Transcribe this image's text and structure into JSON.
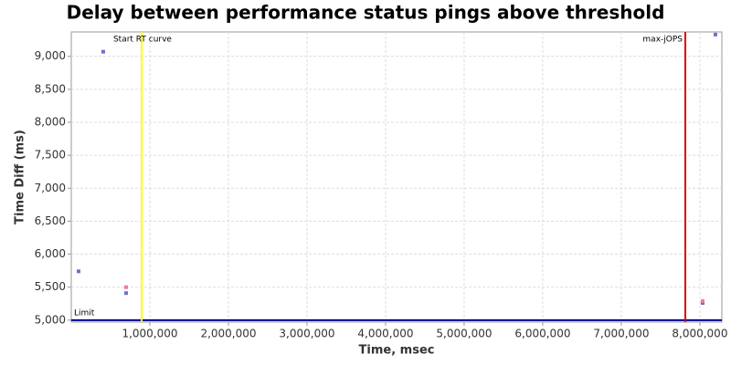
{
  "chart_data": {
    "type": "scatter",
    "title": "Delay between performance status pings above threshold",
    "xlabel": "Time, msec",
    "ylabel": "Time Diff (ms)",
    "xlim": [
      0,
      8280000
    ],
    "ylim": [
      4970,
      9370
    ],
    "xticks": [
      {
        "value": 1000000,
        "label": "1,000,000"
      },
      {
        "value": 2000000,
        "label": "2,000,000"
      },
      {
        "value": 3000000,
        "label": "3,000,000"
      },
      {
        "value": 4000000,
        "label": "4,000,000"
      },
      {
        "value": 5000000,
        "label": "5,000,000"
      },
      {
        "value": 6000000,
        "label": "6,000,000"
      },
      {
        "value": 7000000,
        "label": "7,000,000"
      },
      {
        "value": 8000000,
        "label": "8,000,000"
      }
    ],
    "yticks": [
      {
        "value": 5000,
        "label": "5,000"
      },
      {
        "value": 5500,
        "label": "5,500"
      },
      {
        "value": 6000,
        "label": "6,000"
      },
      {
        "value": 6500,
        "label": "6,500"
      },
      {
        "value": 7000,
        "label": "7,000"
      },
      {
        "value": 7500,
        "label": "7,500"
      },
      {
        "value": 8000,
        "label": "8,000"
      },
      {
        "value": 8500,
        "label": "8,500"
      },
      {
        "value": 9000,
        "label": "9,000"
      }
    ],
    "grid": true,
    "series": [
      {
        "color": "#7070cc",
        "x": [
          93000,
          407000,
          698000,
          8035000,
          8198000
        ],
        "values": [
          5740,
          9070,
          5410,
          5260,
          9330
        ]
      },
      {
        "color": "#ee77aa",
        "x": [
          698000,
          8035000
        ],
        "values": [
          5500,
          5290
        ]
      }
    ],
    "vlines": [
      {
        "label": "Start RT curve",
        "x": 895000,
        "color": "#ffff00"
      },
      {
        "label": "max-jOPS",
        "x": 7815000,
        "color": "#dd0000"
      }
    ],
    "hline": {
      "label": "Limit",
      "value": 5000,
      "color": "#000099"
    }
  }
}
